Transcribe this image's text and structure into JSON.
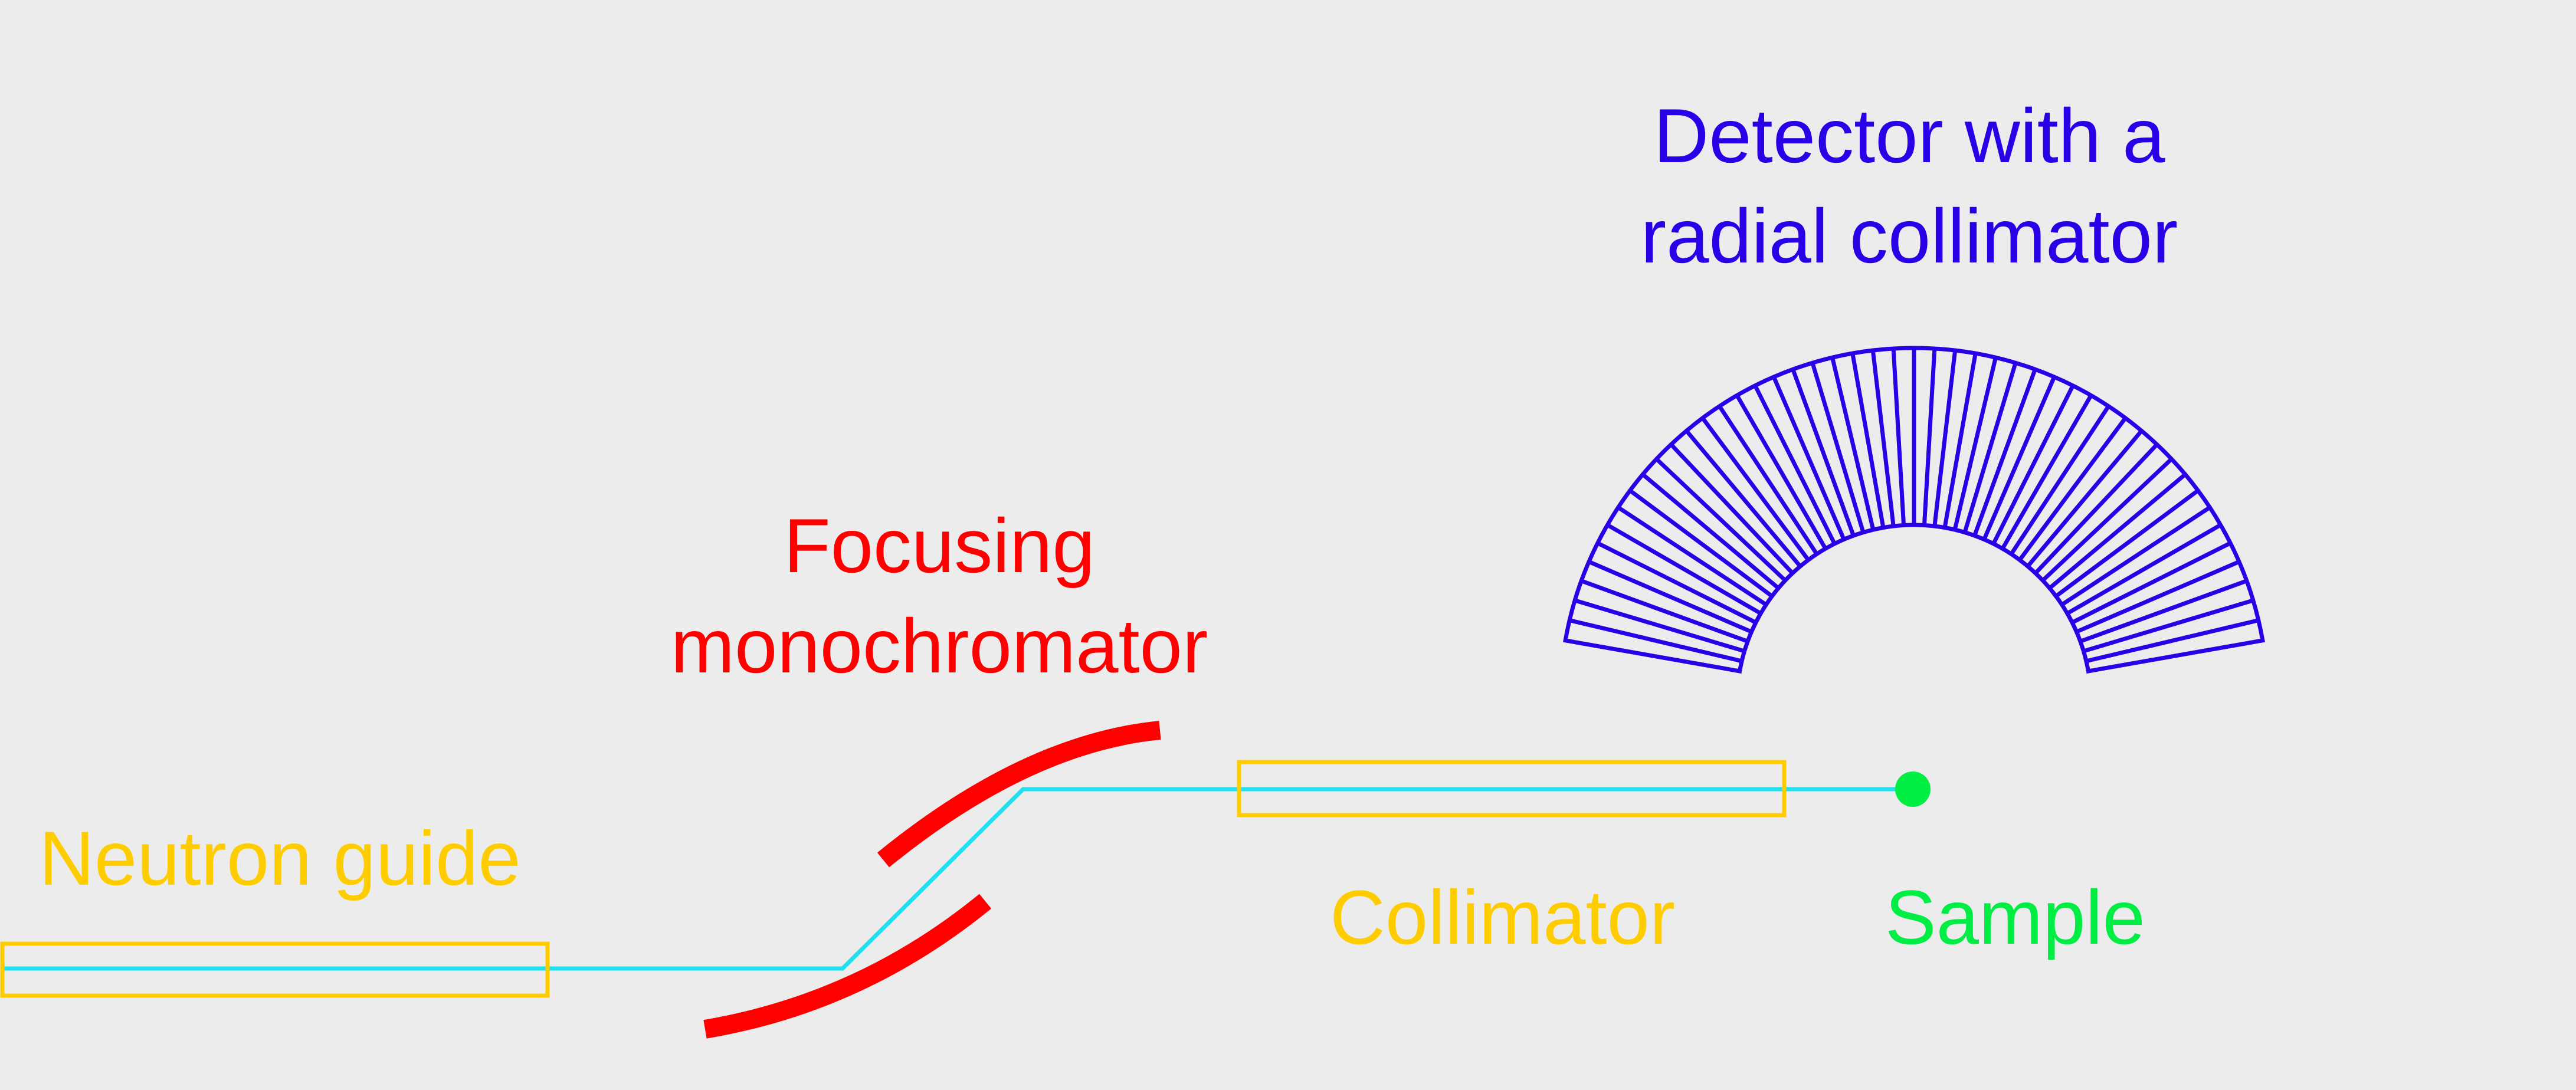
{
  "colors": {
    "background": "#ececec",
    "beam": "#1ee0f0",
    "guide": "#ffcc00",
    "monochromator": "#ff0000",
    "detector": "#2a00e6",
    "sample": "#00ee44"
  },
  "labels": {
    "neutron_guide": "Neutron guide",
    "focusing_line1": "Focusing",
    "focusing_line2": "monochromator",
    "collimator": "Collimator",
    "sample": "Sample",
    "detector_line1": "Detector with a",
    "detector_line2": "radial collimator"
  },
  "detector": {
    "collimator_blade_count": 48
  }
}
